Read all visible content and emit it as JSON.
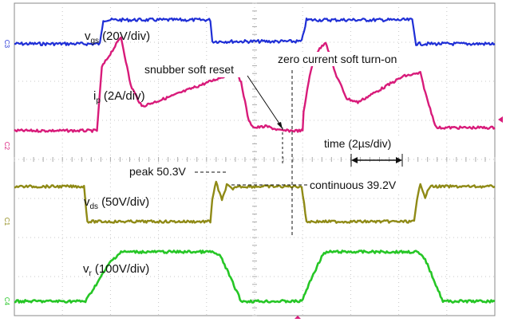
{
  "chart_data": {
    "type": "line",
    "time_scale": "time (2µs/div)",
    "grid_divisions": {
      "x": 10,
      "y": 8
    },
    "series": [
      {
        "name": "vgs",
        "name_main": "v",
        "name_sub": "gs",
        "scale": "(20V/div)",
        "channel": "C3",
        "color": "#1f2fd6",
        "points": [
          [
            0,
            0
          ],
          [
            1.78,
            0
          ],
          [
            1.85,
            1
          ],
          [
            4.08,
            1
          ],
          [
            4.12,
            0.1
          ],
          [
            5.98,
            0.1
          ],
          [
            6.08,
            1
          ],
          [
            8.28,
            1
          ],
          [
            8.36,
            0
          ],
          [
            10,
            0
          ]
        ]
      },
      {
        "name": "ip",
        "name_main": "i",
        "name_sub": "p",
        "scale": "(2A/div)",
        "channel": "C2",
        "color": "#d81b7a",
        "points": [
          [
            0,
            0.25
          ],
          [
            1.72,
            0.25
          ],
          [
            1.82,
            1.3
          ],
          [
            2.22,
            1.8
          ],
          [
            2.42,
            1.0
          ],
          [
            2.65,
            0.65
          ],
          [
            3.2,
            0.8
          ],
          [
            4.6,
            1.22
          ],
          [
            4.72,
            1.05
          ],
          [
            4.88,
            0.4
          ],
          [
            5.0,
            0.3
          ],
          [
            5.25,
            0.32
          ],
          [
            5.55,
            0.25
          ],
          [
            6.0,
            0.25
          ],
          [
            6.02,
            0.55
          ],
          [
            6.12,
            1.05
          ],
          [
            6.25,
            1.5
          ],
          [
            6.48,
            1.72
          ],
          [
            6.68,
            1.2
          ],
          [
            6.92,
            0.78
          ],
          [
            7.15,
            0.72
          ],
          [
            8.1,
            1.15
          ],
          [
            8.45,
            1.2
          ],
          [
            8.58,
            0.8
          ],
          [
            8.78,
            0.3
          ],
          [
            10,
            0.3
          ]
        ]
      },
      {
        "name": "vds",
        "name_main": "v",
        "name_sub": "ds",
        "scale": "(50V/div)",
        "channel": "C1",
        "color": "#8f8a16",
        "points": [
          [
            0,
            1
          ],
          [
            1.45,
            1
          ],
          [
            1.52,
            0
          ],
          [
            4.08,
            0
          ],
          [
            4.12,
            0.65
          ],
          [
            4.2,
            1.12
          ],
          [
            4.32,
            0.6
          ],
          [
            4.42,
            1.05
          ],
          [
            4.55,
            0.9
          ],
          [
            4.62,
            1
          ],
          [
            5.98,
            1
          ],
          [
            6.08,
            0
          ],
          [
            8.32,
            0
          ],
          [
            8.38,
            0.6
          ],
          [
            8.45,
            1.1
          ],
          [
            8.55,
            0.7
          ],
          [
            8.65,
            1
          ],
          [
            10,
            1
          ]
        ]
      },
      {
        "name": "vr",
        "name_main": "v",
        "name_sub": "r",
        "scale": "(100V/div)",
        "channel": "C4",
        "color": "#26c626",
        "points": [
          [
            0,
            0
          ],
          [
            1.48,
            0
          ],
          [
            2.0,
            0.8
          ],
          [
            2.22,
            1.0
          ],
          [
            4.12,
            1.0
          ],
          [
            4.3,
            0.9
          ],
          [
            4.72,
            0
          ],
          [
            5.98,
            0
          ],
          [
            6.2,
            0.5
          ],
          [
            6.42,
            0.95
          ],
          [
            6.55,
            1.0
          ],
          [
            8.38,
            1.0
          ],
          [
            8.55,
            0.85
          ],
          [
            8.92,
            0
          ],
          [
            10,
            0
          ]
        ]
      }
    ],
    "annotations": {
      "snubber": "snubber soft reset",
      "zero_current": "zero current soft turn-on",
      "peak": "peak 50.3V",
      "continuous": "continuous 39.2V"
    }
  }
}
